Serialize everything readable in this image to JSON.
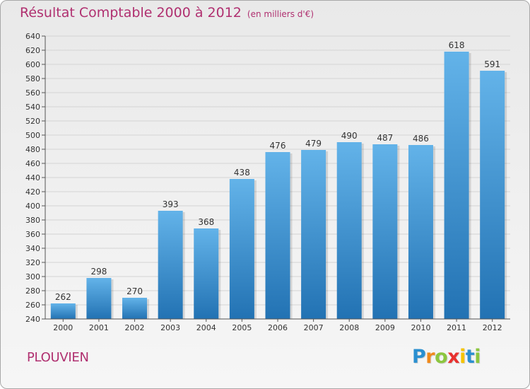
{
  "header": {
    "title": "Résultat Comptable 2000 à 2012",
    "subtitle": "(en milliers d'€)"
  },
  "footer": {
    "place": "PLOUVIEN",
    "logo_letters": [
      "P",
      "r",
      "o",
      "x",
      "i",
      "t",
      "i"
    ],
    "logo_colors": [
      "#2a8fd0",
      "#f08a1c",
      "#8cc63f",
      "#e8312f",
      "#f5c400",
      "#2a8fd0",
      "#8cc63f"
    ]
  },
  "colors": {
    "bar_top": "#63b3e9",
    "bar_bottom": "#2272b3",
    "title": "#b03070"
  },
  "chart_data": {
    "type": "bar",
    "title": "Résultat Comptable 2000 à 2012",
    "subtitle": "(en milliers d'€)",
    "xlabel": "",
    "ylabel": "",
    "categories": [
      "2000",
      "2001",
      "2002",
      "2003",
      "2004",
      "2005",
      "2006",
      "2007",
      "2008",
      "2009",
      "2010",
      "2011",
      "2012"
    ],
    "values": [
      262,
      298,
      270,
      393,
      368,
      438,
      476,
      479,
      490,
      487,
      486,
      618,
      591
    ],
    "value_labels": [
      "262",
      "298",
      "270",
      "393",
      "368",
      "438",
      "476",
      "479",
      "490",
      "487",
      "486",
      "618",
      "591"
    ],
    "ylim": [
      240,
      640
    ],
    "ytick_step": 20,
    "yticks": [
      "240",
      "260",
      "280",
      "300",
      "320",
      "340",
      "360",
      "380",
      "400",
      "420",
      "440",
      "460",
      "480",
      "500",
      "520",
      "540",
      "560",
      "580",
      "600",
      "620",
      "640"
    ],
    "grid": true
  }
}
